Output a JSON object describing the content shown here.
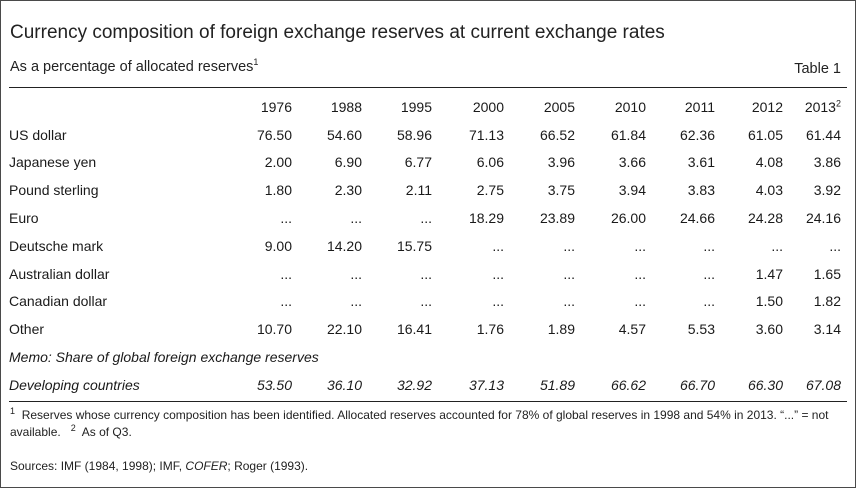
{
  "title": "Currency composition of foreign exchange reserves at current exchange rates",
  "subtitle": "As a percentage of allocated reserves",
  "subtitle_note": "1",
  "table_label": "Table 1",
  "columns": [
    "1976",
    "1988",
    "1995",
    "2000",
    "2005",
    "2010",
    "2011",
    "2012",
    "2013"
  ],
  "last_column_note": "2",
  "rows": [
    {
      "label": "US dollar",
      "values": [
        "76.50",
        "54.60",
        "58.96",
        "71.13",
        "66.52",
        "61.84",
        "62.36",
        "61.05",
        "61.44"
      ]
    },
    {
      "label": "Japanese yen",
      "values": [
        "2.00",
        "6.90",
        "6.77",
        "6.06",
        "3.96",
        "3.66",
        "3.61",
        "4.08",
        "3.86"
      ]
    },
    {
      "label": "Pound sterling",
      "values": [
        "1.80",
        "2.30",
        "2.11",
        "2.75",
        "3.75",
        "3.94",
        "3.83",
        "4.03",
        "3.92"
      ]
    },
    {
      "label": "Euro",
      "values": [
        "...",
        "...",
        "...",
        "18.29",
        "23.89",
        "26.00",
        "24.66",
        "24.28",
        "24.16"
      ]
    },
    {
      "label": "Deutsche mark",
      "values": [
        "9.00",
        "14.20",
        "15.75",
        "...",
        "...",
        "...",
        "...",
        "...",
        "..."
      ]
    },
    {
      "label": "Australian dollar",
      "values": [
        "...",
        "...",
        "...",
        "...",
        "...",
        "...",
        "...",
        "1.47",
        "1.65"
      ]
    },
    {
      "label": "Canadian dollar",
      "values": [
        "...",
        "...",
        "...",
        "...",
        "...",
        "...",
        "...",
        "1.50",
        "1.82"
      ]
    },
    {
      "label": "Other",
      "values": [
        "10.70",
        "22.10",
        "16.41",
        "1.76",
        "1.89",
        "4.57",
        "5.53",
        "3.60",
        "3.14"
      ]
    }
  ],
  "memo_label": "Memo: Share of global foreign exchange reserves",
  "memo_row": {
    "label": "Developing countries",
    "values": [
      "53.50",
      "36.10",
      "32.92",
      "37.13",
      "51.89",
      "66.62",
      "66.70",
      "66.30",
      "67.08"
    ]
  },
  "footnotes": {
    "note1_mark": "1",
    "note1_text": "Reserves whose currency composition has been identified. Allocated reserves accounted for 78% of global reserves in 1998 and 54% in 2013. “...” = not available.",
    "note2_mark": "2",
    "note2_text": "As of Q3.",
    "sources_prefix": "Sources: IMF (1984, 1998); IMF, ",
    "sources_italic": "COFER",
    "sources_suffix": "; Roger (1993)."
  }
}
